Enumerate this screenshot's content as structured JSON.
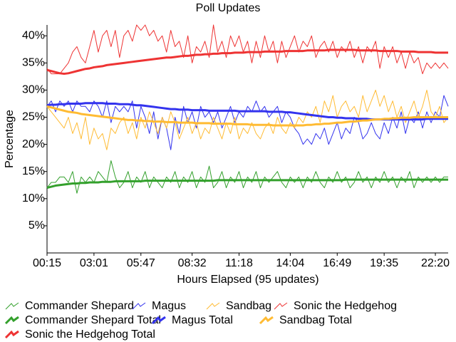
{
  "chart_data": {
    "type": "line",
    "title": "Poll Updates",
    "x_label": "Hours Elapsed (95 updates)",
    "y_label": "Percentage",
    "categories": [
      "00:15",
      null,
      null,
      null,
      null,
      null,
      null,
      null,
      null,
      null,
      null,
      "03:01",
      null,
      null,
      null,
      null,
      null,
      null,
      null,
      null,
      null,
      null,
      "05:47",
      null,
      null,
      null,
      null,
      null,
      null,
      null,
      null,
      null,
      null,
      null,
      "08:32",
      null,
      null,
      null,
      null,
      null,
      null,
      null,
      null,
      null,
      null,
      "11:18",
      null,
      null,
      null,
      null,
      null,
      null,
      null,
      null,
      null,
      null,
      null,
      "14:04",
      null,
      null,
      null,
      null,
      null,
      null,
      null,
      null,
      null,
      null,
      "16:49",
      null,
      null,
      null,
      null,
      null,
      null,
      null,
      null,
      null,
      null,
      "19:35",
      null,
      null,
      null,
      null,
      null,
      null,
      null,
      null,
      null,
      null,
      null,
      "22:20",
      null,
      null,
      null
    ],
    "ylim": [
      0,
      42
    ],
    "yticks": [
      {
        "value": 5,
        "label": "5%"
      },
      {
        "value": 10,
        "label": "10%"
      },
      {
        "value": 15,
        "label": "15%"
      },
      {
        "value": 20,
        "label": "20%"
      },
      {
        "value": 25,
        "label": "25%"
      },
      {
        "value": 30,
        "label": "30%"
      },
      {
        "value": 35,
        "label": "35%"
      },
      {
        "value": 40,
        "label": "40%"
      }
    ],
    "legend": "bottom",
    "series": [
      {
        "name": "Commander Shepard",
        "color": "#33a02c",
        "line_width": 1,
        "values": [
          12,
          13,
          13,
          14,
          14,
          13,
          15,
          11,
          14,
          13,
          14,
          13,
          15,
          14,
          13,
          17,
          14,
          12,
          13,
          15,
          12,
          14,
          13,
          15,
          12,
          14,
          13,
          12,
          14,
          13,
          15,
          12,
          14,
          13,
          15,
          12,
          14,
          13,
          16,
          12,
          13,
          15,
          12,
          14,
          13,
          15,
          12,
          14,
          13,
          15,
          12,
          14,
          13,
          14,
          15,
          13,
          12,
          14,
          13,
          14,
          12,
          14,
          13,
          15,
          13,
          12,
          14,
          13,
          15,
          13,
          14,
          12,
          13,
          15,
          13,
          14,
          12,
          14,
          13,
          15,
          13,
          14,
          12,
          14,
          13,
          15,
          12,
          14,
          13,
          14,
          13,
          14,
          13,
          14,
          14
        ]
      },
      {
        "name": "Magus",
        "color": "#3333ee",
        "line_width": 1,
        "values": [
          27,
          28,
          26,
          28,
          27,
          28,
          26,
          28,
          27,
          27,
          26,
          28,
          27,
          25,
          28,
          24,
          27,
          26,
          27,
          26,
          28,
          23,
          27,
          25,
          22,
          26,
          21,
          25,
          23,
          19,
          25,
          22,
          27,
          24,
          26,
          23,
          27,
          25,
          26,
          24,
          26,
          23,
          25,
          27,
          24,
          26,
          25,
          27,
          26,
          28,
          26,
          27,
          25,
          26,
          27,
          24,
          26,
          25,
          23,
          22,
          20,
          21,
          20,
          22,
          21,
          23,
          20,
          22,
          24,
          21,
          23,
          22,
          25,
          24,
          21,
          22,
          24,
          22,
          21,
          24,
          22,
          25,
          23,
          26,
          22,
          25,
          24,
          26,
          23,
          26,
          24,
          26,
          25,
          29,
          27
        ]
      },
      {
        "name": "Sandbag",
        "color": "#ffbb33",
        "line_width": 1,
        "values": [
          27,
          26,
          25,
          24,
          23,
          25,
          22,
          24,
          21,
          25,
          20,
          23,
          21,
          22,
          19,
          23,
          22,
          24,
          25,
          22,
          24,
          21,
          25,
          23,
          26,
          24,
          22,
          25,
          23,
          26,
          24,
          21,
          23,
          25,
          22,
          24,
          21,
          23,
          22,
          25,
          23,
          21,
          24,
          22,
          25,
          21,
          23,
          22,
          24,
          22,
          21,
          23,
          24,
          22,
          25,
          23,
          22,
          24,
          23,
          25,
          24,
          26,
          25,
          27,
          24,
          28,
          26,
          29,
          25,
          27,
          28,
          26,
          27,
          25,
          29,
          26,
          28,
          30,
          27,
          29,
          26,
          28,
          25,
          27,
          24,
          26,
          28,
          25,
          27,
          30,
          26,
          25,
          27,
          24,
          25
        ]
      },
      {
        "name": "Sonic the Hedgehog",
        "color": "#ee3333",
        "line_width": 1,
        "values": [
          34,
          33,
          33,
          33,
          34,
          35,
          37,
          38,
          36,
          35,
          38,
          41,
          37,
          40,
          41,
          38,
          41,
          36,
          40,
          41,
          39,
          42,
          41,
          42,
          40,
          41,
          39,
          40,
          37,
          41,
          38,
          39,
          36,
          40,
          35,
          38,
          37,
          39,
          36,
          42,
          37,
          39,
          36,
          40,
          38,
          40,
          37,
          39,
          35,
          39,
          36,
          40,
          37,
          39,
          35,
          39,
          36,
          38,
          40,
          37,
          39,
          38,
          40,
          36,
          38,
          39,
          37,
          39,
          36,
          38,
          37,
          39,
          36,
          38,
          35,
          38,
          37,
          39,
          34,
          38,
          36,
          38,
          35,
          37,
          34,
          37,
          35,
          36,
          33,
          35,
          34,
          35,
          34,
          35,
          34
        ]
      },
      {
        "name": "Commander Shepard Total",
        "color": "#33a02c",
        "line_width": 3,
        "values": [
          12.0,
          12.2,
          12.4,
          12.5,
          12.6,
          12.7,
          12.8,
          12.8,
          12.9,
          12.9,
          13.0,
          13.0,
          13.0,
          13.1,
          13.1,
          13.1,
          13.2,
          13.2,
          13.2,
          13.2,
          13.2,
          13.2,
          13.2,
          13.3,
          13.3,
          13.3,
          13.3,
          13.3,
          13.3,
          13.3,
          13.3,
          13.3,
          13.3,
          13.3,
          13.3,
          13.3,
          13.3,
          13.3,
          13.3,
          13.3,
          13.4,
          13.4,
          13.4,
          13.4,
          13.4,
          13.4,
          13.4,
          13.4,
          13.4,
          13.4,
          13.4,
          13.4,
          13.4,
          13.4,
          13.4,
          13.4,
          13.4,
          13.4,
          13.4,
          13.4,
          13.4,
          13.4,
          13.4,
          13.4,
          13.4,
          13.4,
          13.4,
          13.4,
          13.4,
          13.4,
          13.5,
          13.5,
          13.5,
          13.5,
          13.5,
          13.5,
          13.5,
          13.5,
          13.5,
          13.5,
          13.5,
          13.5,
          13.5,
          13.5,
          13.5,
          13.5,
          13.5,
          13.5,
          13.5,
          13.5,
          13.5,
          13.5,
          13.5,
          13.5,
          13.5
        ]
      },
      {
        "name": "Magus Total",
        "color": "#3333ee",
        "line_width": 3,
        "values": [
          27.2,
          27.3,
          27.3,
          27.4,
          27.4,
          27.5,
          27.5,
          27.5,
          27.5,
          27.6,
          27.6,
          27.6,
          27.6,
          27.6,
          27.5,
          27.5,
          27.5,
          27.4,
          27.4,
          27.4,
          27.3,
          27.2,
          27.2,
          27.1,
          27.0,
          26.9,
          26.8,
          26.7,
          26.6,
          26.5,
          26.5,
          26.4,
          26.4,
          26.4,
          26.3,
          26.3,
          26.3,
          26.3,
          26.2,
          26.2,
          26.2,
          26.2,
          26.2,
          26.2,
          26.2,
          26.1,
          26.1,
          26.1,
          26.1,
          26.1,
          26.1,
          26.1,
          26.0,
          26.0,
          26.0,
          26.0,
          25.9,
          25.9,
          25.8,
          25.7,
          25.6,
          25.5,
          25.4,
          25.3,
          25.2,
          25.1,
          25.0,
          25.0,
          24.9,
          24.9,
          24.8,
          24.8,
          24.8,
          24.7,
          24.7,
          24.7,
          24.6,
          24.6,
          24.6,
          24.6,
          24.6,
          24.6,
          24.6,
          24.6,
          24.6,
          24.6,
          24.6,
          24.6,
          24.6,
          24.7,
          24.7,
          24.7,
          24.7,
          24.7,
          24.7
        ]
      },
      {
        "name": "Sandbag Total",
        "color": "#ffbb33",
        "line_width": 3,
        "values": [
          27.0,
          26.8,
          26.6,
          26.4,
          26.2,
          26.0,
          25.9,
          25.8,
          25.6,
          25.5,
          25.4,
          25.3,
          25.2,
          25.1,
          25.0,
          24.9,
          24.8,
          24.7,
          24.6,
          24.5,
          24.5,
          24.4,
          24.4,
          24.3,
          24.3,
          24.2,
          24.2,
          24.2,
          24.1,
          24.1,
          24.1,
          24.0,
          24.0,
          24.0,
          24.0,
          23.9,
          23.9,
          23.9,
          23.9,
          23.8,
          23.8,
          23.8,
          23.8,
          23.8,
          23.7,
          23.7,
          23.7,
          23.7,
          23.6,
          23.6,
          23.6,
          23.6,
          23.6,
          23.5,
          23.5,
          23.5,
          23.5,
          23.5,
          23.5,
          23.5,
          23.5,
          23.6,
          23.6,
          23.7,
          23.7,
          23.8,
          23.8,
          23.9,
          24.0,
          24.0,
          24.1,
          24.2,
          24.2,
          24.3,
          24.4,
          24.4,
          24.5,
          24.6,
          24.6,
          24.7,
          24.7,
          24.8,
          24.8,
          24.9,
          24.9,
          24.9,
          25.0,
          25.0,
          25.0,
          25.0,
          25.0,
          25.0,
          25.0,
          25.0,
          25.0
        ]
      },
      {
        "name": "Sonic the Hedgehog Total",
        "color": "#ee3333",
        "line_width": 3,
        "values": [
          33.7,
          33.5,
          33.3,
          33.1,
          33.0,
          33.1,
          33.3,
          33.5,
          33.7,
          33.9,
          34.0,
          34.2,
          34.3,
          34.4,
          34.6,
          34.7,
          34.8,
          34.9,
          35.0,
          35.1,
          35.2,
          35.3,
          35.4,
          35.5,
          35.6,
          35.7,
          35.8,
          35.9,
          36.0,
          36.0,
          36.1,
          36.2,
          36.3,
          36.3,
          36.4,
          36.5,
          36.5,
          36.6,
          36.6,
          36.7,
          36.7,
          36.8,
          36.8,
          36.8,
          36.9,
          36.9,
          36.9,
          37.0,
          37.0,
          37.0,
          37.0,
          37.1,
          37.1,
          37.1,
          37.1,
          37.1,
          37.2,
          37.2,
          37.2,
          37.2,
          37.2,
          37.3,
          37.3,
          37.3,
          37.3,
          37.3,
          37.4,
          37.4,
          37.4,
          37.4,
          37.4,
          37.4,
          37.4,
          37.3,
          37.3,
          37.3,
          37.3,
          37.3,
          37.2,
          37.2,
          37.2,
          37.2,
          37.2,
          37.1,
          37.1,
          37.1,
          37.1,
          37.0,
          37.0,
          37.0,
          37.0,
          36.9,
          36.9,
          36.9,
          36.9
        ]
      }
    ]
  }
}
